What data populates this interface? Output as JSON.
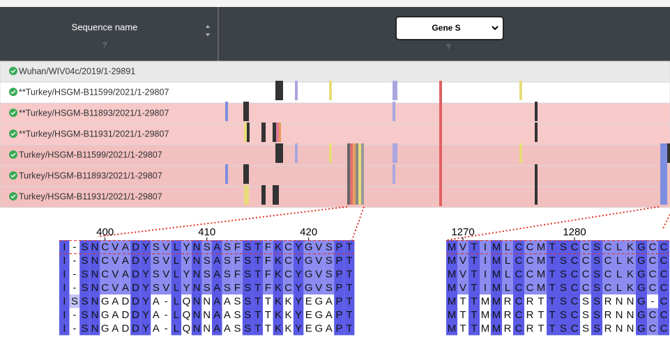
{
  "header": {
    "sequence_name": "Sequence name",
    "sequence_help": "?",
    "gene_select": "Gene S",
    "gene_help": "?"
  },
  "rows": [
    "Wuhan/WIV04c/2019/1-29891",
    "**Turkey/HSGM-B11599/2021/1-29807",
    "**Turkey/HSGM-B11893/2021/1-29807",
    "**Turkey/HSGM-B11931/2021/1-29807",
    "Turkey/HSGM-B11599/2021/1-29807",
    "Turkey/HSGM-B11893/2021/1-29807",
    "Turkey/HSGM-B11931/2021/1-29807"
  ],
  "alignments": [
    {
      "ticks": [
        400,
        410,
        420
      ],
      "rows": [
        "I-SNCVADYSVLYNSASFSTFKCYGVSPT",
        "I-SNCVADYSVLYNSASFSTFKCYGVSPT",
        "I-SNCVADYSVLYNSASFSTFKCYGVSPT",
        "I-SNCVADYSVLYNSASFSTFKCYGVSPT",
        "ISSNGADDYA-LQNNAASSTTKKYEGAPT",
        "I-SNGADDYA-LQNNAASSTTKKYEGAPT",
        "I-SNGADDYA-LQNNAASSTTKKYEGAPT"
      ]
    },
    {
      "ticks": [
        1270,
        1280
      ],
      "rows": [
        "MVTIMLCCMTSCCSCLKGCC",
        "MVTIMLCCMTSCCSCLKGCC",
        "MVTIMLCCMTSCCSCLKGCC",
        "MVTIMLCCMTSCCSCLKGCC",
        "MTTMMRCRTTSCSSRNNG-C",
        "MTTMMRCRTTSCSSRNNGCC",
        "MTTMMRCRTTSCSSRNNGCC"
      ]
    }
  ]
}
